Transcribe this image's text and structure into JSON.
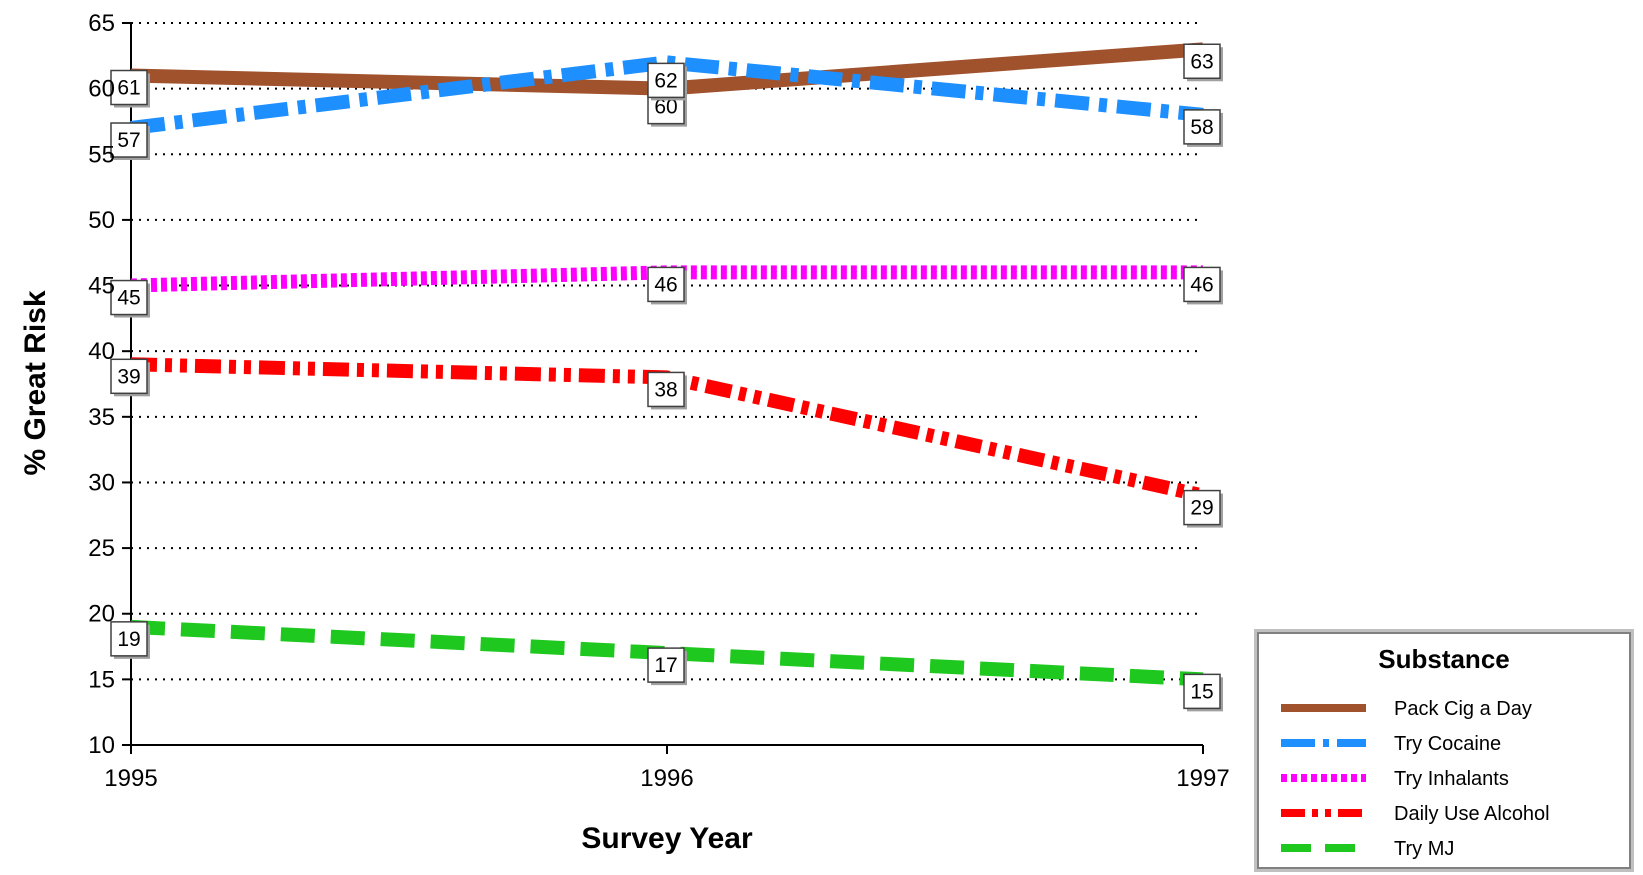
{
  "chart_data": {
    "type": "line",
    "x": [
      "1995",
      "1996",
      "1997"
    ],
    "xlabel": "Survey Year",
    "ylabel": "% Great Risk",
    "ylim": [
      10,
      65
    ],
    "yticks": [
      "10",
      "15",
      "20",
      "25",
      "30",
      "35",
      "40",
      "45",
      "50",
      "55",
      "60",
      "65"
    ],
    "grid": "horizontal dotted",
    "legend_title": "Substance",
    "legend_position": "bottom-right",
    "series": [
      {
        "name": "Pack Cig a Day",
        "values": [
          61,
          60,
          63
        ],
        "labels": [
          "61",
          "60",
          "63"
        ],
        "color": "#a0522d",
        "style": "solid"
      },
      {
        "name": "Try Cocaine",
        "values": [
          57,
          62,
          58
        ],
        "labels": [
          "57",
          "62",
          "58"
        ],
        "color": "#1e8fff",
        "style": "dash-dot"
      },
      {
        "name": "Try Inhalants",
        "values": [
          45,
          46,
          46
        ],
        "labels": [
          "45",
          "46",
          "46"
        ],
        "color": "#ff00ff",
        "style": "dotted"
      },
      {
        "name": "Daily Use Alcohol",
        "values": [
          39,
          38,
          29
        ],
        "labels": [
          "39",
          "38",
          "29"
        ],
        "color": "#ff0000",
        "style": "dash-dot-dot"
      },
      {
        "name": "Try MJ",
        "values": [
          19,
          17,
          15
        ],
        "labels": [
          "19",
          "17",
          "15"
        ],
        "color": "#1ec81e",
        "style": "dashed"
      }
    ]
  }
}
